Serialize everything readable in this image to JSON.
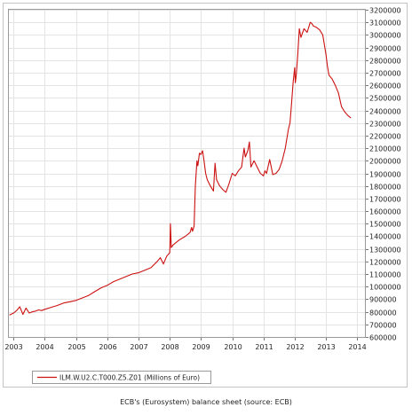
{
  "chart_data": {
    "type": "line",
    "caption": "ECB's (Eurosystem) balance sheet (source: ECB)",
    "legend_label": "ILM.W.U2.C.T000.Z5.Z01 (Millions of Euro)",
    "series_color": "#cc1111",
    "grid": true,
    "legend_position": "bottom-left",
    "y_axis_side": "right",
    "ylim": [
      600000,
      3200000
    ],
    "y_ticks": [
      600000,
      700000,
      800000,
      900000,
      1000000,
      1100000,
      1200000,
      1300000,
      1400000,
      1500000,
      1600000,
      1700000,
      1800000,
      1900000,
      2000000,
      2100000,
      2200000,
      2300000,
      2400000,
      2500000,
      2600000,
      2700000,
      2800000,
      2900000,
      3000000,
      3100000,
      3200000
    ],
    "y_tick_labels": [
      "600000",
      "700000",
      "800000",
      "900000",
      "1000000",
      "1100000",
      "1200000",
      "1300000",
      "1400000",
      "1500000",
      "1600000",
      "1700000",
      "1800000",
      "1900000",
      "2000000",
      "2100000",
      "2200000",
      "2300000",
      "2400000",
      "2500000",
      "2600000",
      "2700000",
      "2800000",
      "2900000",
      "3000000",
      "3100000",
      "3200000"
    ],
    "xlim": [
      2002.85,
      2014.25
    ],
    "x_ticks": [
      2003,
      2004,
      2005,
      2006,
      2007,
      2008,
      2009,
      2010,
      2011,
      2012,
      2013,
      2014
    ],
    "x_tick_labels": [
      "2003",
      "2004",
      "2005",
      "2006",
      "2007",
      "2008",
      "2009",
      "2010",
      "2011",
      "2012",
      "2013",
      "2014"
    ],
    "series": [
      {
        "name": "ILM.W.U2.C.T000.Z5.Z01 (Millions of Euro)",
        "x": [
          2002.87,
          2003.0,
          2003.1,
          2003.2,
          2003.3,
          2003.4,
          2003.5,
          2003.6,
          2003.7,
          2003.8,
          2003.9,
          2004.0,
          2004.2,
          2004.4,
          2004.6,
          2004.8,
          2005.0,
          2005.2,
          2005.4,
          2005.6,
          2005.8,
          2006.0,
          2006.2,
          2006.4,
          2006.6,
          2006.8,
          2007.0,
          2007.2,
          2007.4,
          2007.6,
          2007.7,
          2007.8,
          2007.9,
          2008.0,
          2008.02,
          2008.05,
          2008.1,
          2008.3,
          2008.5,
          2008.65,
          2008.7,
          2008.73,
          2008.78,
          2008.82,
          2008.87,
          2008.9,
          2008.95,
          2009.0,
          2009.05,
          2009.1,
          2009.15,
          2009.2,
          2009.3,
          2009.4,
          2009.45,
          2009.5,
          2009.6,
          2009.7,
          2009.75,
          2009.8,
          2009.9,
          2010.0,
          2010.1,
          2010.2,
          2010.3,
          2010.38,
          2010.42,
          2010.5,
          2010.55,
          2010.6,
          2010.7,
          2010.8,
          2010.9,
          2011.0,
          2011.05,
          2011.1,
          2011.2,
          2011.25,
          2011.3,
          2011.4,
          2011.5,
          2011.6,
          2011.7,
          2011.8,
          2011.85,
          2011.9,
          2011.95,
          2012.0,
          2012.02,
          2012.05,
          2012.1,
          2012.15,
          2012.2,
          2012.3,
          2012.4,
          2012.5,
          2012.55,
          2012.6,
          2012.7,
          2012.8,
          2012.9,
          2013.0,
          2013.05,
          2013.1,
          2013.2,
          2013.3,
          2013.4,
          2013.5,
          2013.6,
          2013.7,
          2013.8
        ],
        "y": [
          775000,
          790000,
          810000,
          840000,
          780000,
          830000,
          790000,
          800000,
          805000,
          815000,
          810000,
          820000,
          835000,
          850000,
          870000,
          880000,
          890000,
          910000,
          930000,
          960000,
          990000,
          1010000,
          1040000,
          1060000,
          1080000,
          1100000,
          1110000,
          1130000,
          1150000,
          1200000,
          1230000,
          1180000,
          1240000,
          1270000,
          1500000,
          1310000,
          1330000,
          1370000,
          1400000,
          1430000,
          1470000,
          1440000,
          1480000,
          1800000,
          2000000,
          1960000,
          2060000,
          2050000,
          2080000,
          2000000,
          1900000,
          1850000,
          1800000,
          1760000,
          1980000,
          1850000,
          1800000,
          1770000,
          1760000,
          1750000,
          1820000,
          1900000,
          1880000,
          1920000,
          1950000,
          2100000,
          2030000,
          2080000,
          2150000,
          1950000,
          2000000,
          1950000,
          1900000,
          1880000,
          1920000,
          1900000,
          2010000,
          1950000,
          1890000,
          1900000,
          1930000,
          2000000,
          2100000,
          2250000,
          2300000,
          2450000,
          2620000,
          2740000,
          2620000,
          2680000,
          2850000,
          3050000,
          2980000,
          3050000,
          3020000,
          3100000,
          3090000,
          3070000,
          3060000,
          3040000,
          3000000,
          2850000,
          2750000,
          2680000,
          2650000,
          2600000,
          2540000,
          2430000,
          2390000,
          2360000,
          2340000
        ]
      }
    ]
  }
}
